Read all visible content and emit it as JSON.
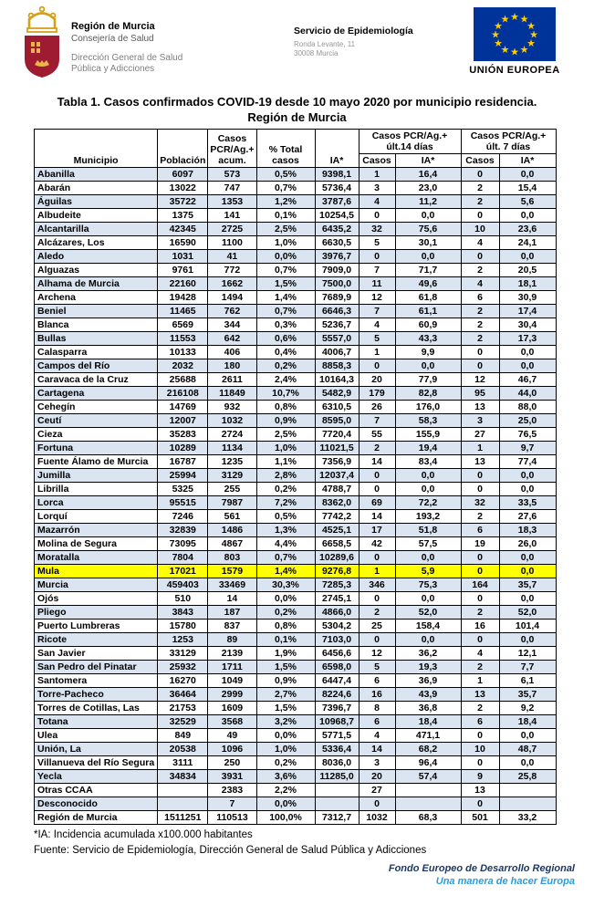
{
  "header": {
    "org": {
      "name": "Región de Murcia",
      "dept": "Consejería de Salud",
      "sub": "Dirección General de Salud Pública y Adicciones"
    },
    "service": {
      "name": "Servicio de Epidemiología",
      "address1": "Ronda Levante, 11",
      "address2": "30008 Murcia"
    },
    "eu": {
      "label": "UNIÓN EUROPEA"
    }
  },
  "title": {
    "line1": "Tabla 1. Casos confirmados COVID-19 desde 10 mayo 2020 por municipio residencia.",
    "line2": "Región de Murcia"
  },
  "table": {
    "headers": {
      "municipio": "Municipio",
      "poblacion": "Población",
      "casos_acum": "Casos PCR/Ag.+ acum.",
      "pct_total": "% Total casos",
      "ia": "IA*",
      "group_14": "Casos PCR/Ag.+ últ.14 días",
      "group_7": "Casos PCR/Ag.+ últ. 7 días",
      "sub_casos": "Casos",
      "sub_ia": "IA*"
    },
    "highlight_municipality": "Mula",
    "rows": [
      [
        "Abanilla",
        "6097",
        "573",
        "0,5%",
        "9398,1",
        "1",
        "16,4",
        "0",
        "0,0"
      ],
      [
        "Abarán",
        "13022",
        "747",
        "0,7%",
        "5736,4",
        "3",
        "23,0",
        "2",
        "15,4"
      ],
      [
        "Águilas",
        "35722",
        "1353",
        "1,2%",
        "3787,6",
        "4",
        "11,2",
        "2",
        "5,6"
      ],
      [
        "Albudeite",
        "1375",
        "141",
        "0,1%",
        "10254,5",
        "0",
        "0,0",
        "0",
        "0,0"
      ],
      [
        "Alcantarilla",
        "42345",
        "2725",
        "2,5%",
        "6435,2",
        "32",
        "75,6",
        "10",
        "23,6"
      ],
      [
        "Alcázares, Los",
        "16590",
        "1100",
        "1,0%",
        "6630,5",
        "5",
        "30,1",
        "4",
        "24,1"
      ],
      [
        "Aledo",
        "1031",
        "41",
        "0,0%",
        "3976,7",
        "0",
        "0,0",
        "0",
        "0,0"
      ],
      [
        "Alguazas",
        "9761",
        "772",
        "0,7%",
        "7909,0",
        "7",
        "71,7",
        "2",
        "20,5"
      ],
      [
        "Alhama de Murcia",
        "22160",
        "1662",
        "1,5%",
        "7500,0",
        "11",
        "49,6",
        "4",
        "18,1"
      ],
      [
        "Archena",
        "19428",
        "1494",
        "1,4%",
        "7689,9",
        "12",
        "61,8",
        "6",
        "30,9"
      ],
      [
        "Beniel",
        "11465",
        "762",
        "0,7%",
        "6646,3",
        "7",
        "61,1",
        "2",
        "17,4"
      ],
      [
        "Blanca",
        "6569",
        "344",
        "0,3%",
        "5236,7",
        "4",
        "60,9",
        "2",
        "30,4"
      ],
      [
        "Bullas",
        "11553",
        "642",
        "0,6%",
        "5557,0",
        "5",
        "43,3",
        "2",
        "17,3"
      ],
      [
        "Calasparra",
        "10133",
        "406",
        "0,4%",
        "4006,7",
        "1",
        "9,9",
        "0",
        "0,0"
      ],
      [
        "Campos del Río",
        "2032",
        "180",
        "0,2%",
        "8858,3",
        "0",
        "0,0",
        "0",
        "0,0"
      ],
      [
        "Caravaca de la Cruz",
        "25688",
        "2611",
        "2,4%",
        "10164,3",
        "20",
        "77,9",
        "12",
        "46,7"
      ],
      [
        "Cartagena",
        "216108",
        "11849",
        "10,7%",
        "5482,9",
        "179",
        "82,8",
        "95",
        "44,0"
      ],
      [
        "Cehegín",
        "14769",
        "932",
        "0,8%",
        "6310,5",
        "26",
        "176,0",
        "13",
        "88,0"
      ],
      [
        "Ceutí",
        "12007",
        "1032",
        "0,9%",
        "8595,0",
        "7",
        "58,3",
        "3",
        "25,0"
      ],
      [
        "Cieza",
        "35283",
        "2724",
        "2,5%",
        "7720,4",
        "55",
        "155,9",
        "27",
        "76,5"
      ],
      [
        "Fortuna",
        "10289",
        "1134",
        "1,0%",
        "11021,5",
        "2",
        "19,4",
        "1",
        "9,7"
      ],
      [
        "Fuente Álamo de Murcia",
        "16787",
        "1235",
        "1,1%",
        "7356,9",
        "14",
        "83,4",
        "13",
        "77,4"
      ],
      [
        "Jumilla",
        "25994",
        "3129",
        "2,8%",
        "12037,4",
        "0",
        "0,0",
        "0",
        "0,0"
      ],
      [
        "Librilla",
        "5325",
        "255",
        "0,2%",
        "4788,7",
        "0",
        "0,0",
        "0",
        "0,0"
      ],
      [
        "Lorca",
        "95515",
        "7987",
        "7,2%",
        "8362,0",
        "69",
        "72,2",
        "32",
        "33,5"
      ],
      [
        "Lorquí",
        "7246",
        "561",
        "0,5%",
        "7742,2",
        "14",
        "193,2",
        "2",
        "27,6"
      ],
      [
        "Mazarrón",
        "32839",
        "1486",
        "1,3%",
        "4525,1",
        "17",
        "51,8",
        "6",
        "18,3"
      ],
      [
        "Molina de Segura",
        "73095",
        "4867",
        "4,4%",
        "6658,5",
        "42",
        "57,5",
        "19",
        "26,0"
      ],
      [
        "Moratalla",
        "7804",
        "803",
        "0,7%",
        "10289,6",
        "0",
        "0,0",
        "0",
        "0,0"
      ],
      [
        "Mula",
        "17021",
        "1579",
        "1,4%",
        "9276,8",
        "1",
        "5,9",
        "0",
        "0,0"
      ],
      [
        "Murcia",
        "459403",
        "33469",
        "30,3%",
        "7285,3",
        "346",
        "75,3",
        "164",
        "35,7"
      ],
      [
        "Ojós",
        "510",
        "14",
        "0,0%",
        "2745,1",
        "0",
        "0,0",
        "0",
        "0,0"
      ],
      [
        "Pliego",
        "3843",
        "187",
        "0,2%",
        "4866,0",
        "2",
        "52,0",
        "2",
        "52,0"
      ],
      [
        "Puerto Lumbreras",
        "15780",
        "837",
        "0,8%",
        "5304,2",
        "25",
        "158,4",
        "16",
        "101,4"
      ],
      [
        "Ricote",
        "1253",
        "89",
        "0,1%",
        "7103,0",
        "0",
        "0,0",
        "0",
        "0,0"
      ],
      [
        "San Javier",
        "33129",
        "2139",
        "1,9%",
        "6456,6",
        "12",
        "36,2",
        "4",
        "12,1"
      ],
      [
        "San Pedro del Pinatar",
        "25932",
        "1711",
        "1,5%",
        "6598,0",
        "5",
        "19,3",
        "2",
        "7,7"
      ],
      [
        "Santomera",
        "16270",
        "1049",
        "0,9%",
        "6447,4",
        "6",
        "36,9",
        "1",
        "6,1"
      ],
      [
        "Torre-Pacheco",
        "36464",
        "2999",
        "2,7%",
        "8224,6",
        "16",
        "43,9",
        "13",
        "35,7"
      ],
      [
        "Torres de Cotillas, Las",
        "21753",
        "1609",
        "1,5%",
        "7396,7",
        "8",
        "36,8",
        "2",
        "9,2"
      ],
      [
        "Totana",
        "32529",
        "3568",
        "3,2%",
        "10968,7",
        "6",
        "18,4",
        "6",
        "18,4"
      ],
      [
        "Ulea",
        "849",
        "49",
        "0,0%",
        "5771,5",
        "4",
        "471,1",
        "0",
        "0,0"
      ],
      [
        "Unión, La",
        "20538",
        "1096",
        "1,0%",
        "5336,4",
        "14",
        "68,2",
        "10",
        "48,7"
      ],
      [
        "Villanueva del Río Segura",
        "3111",
        "250",
        "0,2%",
        "8036,0",
        "3",
        "96,4",
        "0",
        "0,0"
      ],
      [
        "Yecla",
        "34834",
        "3931",
        "3,6%",
        "11285,0",
        "20",
        "57,4",
        "9",
        "25,8"
      ],
      [
        "Otras CCAA",
        "",
        "2383",
        "2,2%",
        "",
        "27",
        "",
        "13",
        ""
      ],
      [
        "Desconocido",
        "",
        "7",
        "0,0%",
        "",
        "0",
        "",
        "0",
        ""
      ]
    ],
    "total": [
      "Región de Murcia",
      "1511251",
      "110513",
      "100,0%",
      "7312,7",
      "1032",
      "68,3",
      "501",
      "33,2"
    ]
  },
  "footnotes": {
    "line1": "*IA: Incidencia acumulada x100.000 habitantes",
    "line2": "Fuente: Servicio de Epidemiología, Dirección General de Salud Pública y Adicciones"
  },
  "footer": {
    "line1": "Fondo Europeo de Desarrollo Regional",
    "line2": "Una manera de hacer Europa"
  },
  "colors": {
    "row_stripe": "#dbe5f1",
    "highlight": "#ffff00",
    "eu_flag_blue": "#003399",
    "eu_star_gold": "#ffcc00",
    "shield_red": "#9e1b32",
    "crown_gold": "#d4a017",
    "footer_navy": "#1f3864",
    "footer_lightblue": "#2e9bd5"
  }
}
